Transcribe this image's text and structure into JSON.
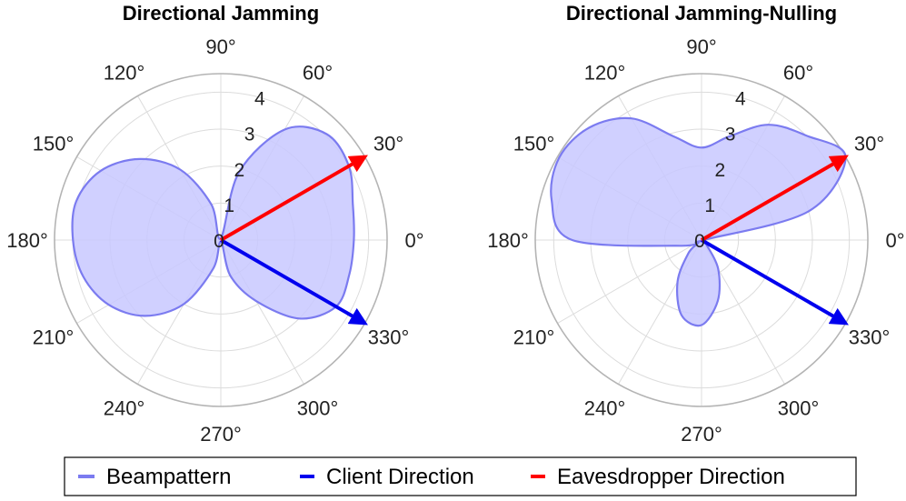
{
  "colors": {
    "beam_fill": "#c8c8ff",
    "beam_line": "#7b7bf0",
    "client": "#0000ee",
    "eavesdropper": "#ff0000",
    "grid": "#dcdcdc",
    "outer_ring": "#b4b4b4"
  },
  "chart_data": [
    {
      "type": "polar",
      "title": "Directional Jamming",
      "rlim": [
        0,
        4.5
      ],
      "radial_ticks": [
        "0",
        "1",
        "2",
        "3",
        "4"
      ],
      "angle_ticks": [
        "0°",
        "30°",
        "60°",
        "90°",
        "120°",
        "150°",
        "180°",
        "210°",
        "240°",
        "270°",
        "300°",
        "330°"
      ],
      "grid": true,
      "series": [
        {
          "name": "Beampattern",
          "kind": "filled-area",
          "theta_deg": [
            0,
            15,
            30,
            45,
            60,
            75,
            90,
            105,
            120,
            135,
            150,
            165,
            180,
            195,
            210,
            225,
            240,
            255,
            270,
            285,
            300,
            315,
            330,
            345
          ],
          "r": [
            3.6,
            3.7,
            4.0,
            4.05,
            3.45,
            1.9,
            0.05,
            1.0,
            2.2,
            3.1,
            3.75,
            4.05,
            4.0,
            3.85,
            3.5,
            2.9,
            2.0,
            0.8,
            0.05,
            1.0,
            1.9,
            3.0,
            3.6,
            3.6
          ]
        },
        {
          "name": "Client Direction",
          "kind": "arrow",
          "theta_deg": -30,
          "r": 4.5
        },
        {
          "name": "Eavesdropper Direction",
          "kind": "arrow",
          "theta_deg": 30,
          "r": 4.5
        }
      ]
    },
    {
      "type": "polar",
      "title": "Directional Jamming-Nulling",
      "rlim": [
        0,
        4.5
      ],
      "radial_ticks": [
        "0",
        "1",
        "2",
        "3",
        "4"
      ],
      "angle_ticks": [
        "0°",
        "30°",
        "60°",
        "90°",
        "120°",
        "150°",
        "180°",
        "210°",
        "240°",
        "270°",
        "300°",
        "330°"
      ],
      "grid": true,
      "series": [
        {
          "name": "Beampattern",
          "kind": "filled-area",
          "theta_deg": [
            0,
            15,
            30,
            45,
            60,
            75,
            90,
            105,
            120,
            135,
            150,
            165,
            180,
            195,
            210,
            225,
            240,
            255,
            270,
            285,
            300,
            315,
            330,
            345
          ],
          "r": [
            0.05,
            3.0,
            4.5,
            4.0,
            3.6,
            2.9,
            2.5,
            2.9,
            3.8,
            4.3,
            4.45,
            4.2,
            3.5,
            0.6,
            0.1,
            0.5,
            1.3,
            2.1,
            2.3,
            1.7,
            0.9,
            0.2,
            0.05,
            0.05
          ]
        },
        {
          "name": "Client Direction",
          "kind": "arrow",
          "theta_deg": -30,
          "r": 4.5
        },
        {
          "name": "Eavesdropper Direction",
          "kind": "arrow",
          "theta_deg": 30,
          "r": 4.5
        }
      ]
    }
  ],
  "legend": {
    "placement": "bottom-center",
    "items": [
      {
        "label": "Beampattern",
        "color_key": "beam_line"
      },
      {
        "label": "Client Direction",
        "color_key": "client"
      },
      {
        "label": "Eavesdropper Direction",
        "color_key": "eavesdropper"
      }
    ]
  }
}
